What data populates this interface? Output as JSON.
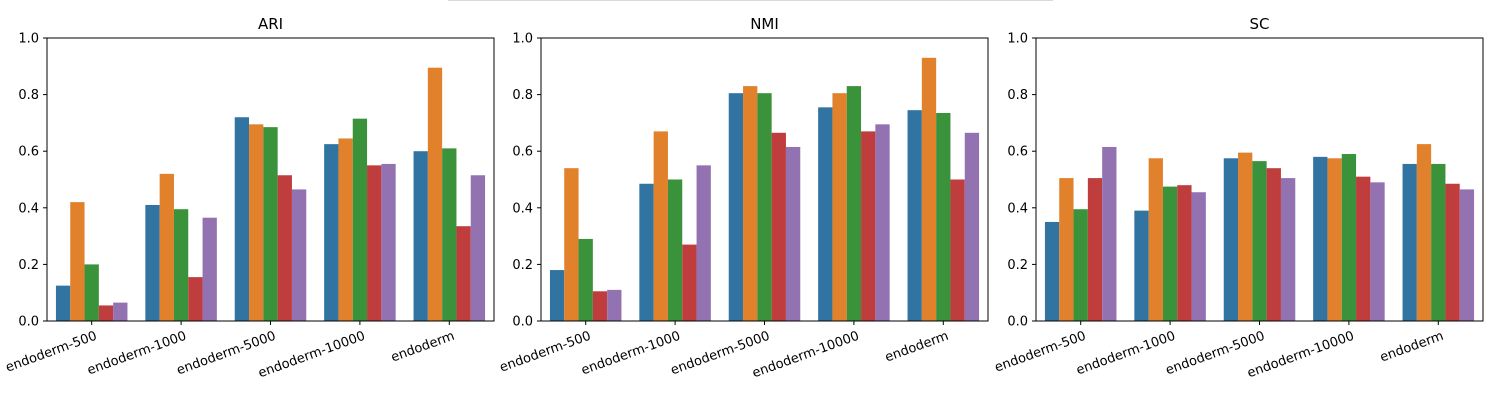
{
  "chart_data": [
    {
      "type": "bar",
      "title": "ARI",
      "categories": [
        "endoderm-500",
        "endoderm-1000",
        "endoderm-5000",
        "endoderm-10000",
        "endoderm"
      ],
      "ylim": [
        0,
        1.0
      ],
      "yticks": [
        "0.0",
        "0.2",
        "0.4",
        "0.6",
        "0.8",
        "1.0"
      ],
      "series": [
        {
          "color": "#3274a1",
          "values": [
            0.125,
            0.41,
            0.72,
            0.625,
            0.6
          ]
        },
        {
          "color": "#e1812c",
          "values": [
            0.42,
            0.52,
            0.695,
            0.645,
            0.895
          ]
        },
        {
          "color": "#3a923a",
          "values": [
            0.2,
            0.395,
            0.685,
            0.715,
            0.61
          ]
        },
        {
          "color": "#c03d3e",
          "values": [
            0.055,
            0.155,
            0.515,
            0.55,
            0.335
          ]
        },
        {
          "color": "#9372b2",
          "values": [
            0.065,
            0.365,
            0.465,
            0.555,
            0.515
          ]
        }
      ]
    },
    {
      "type": "bar",
      "title": "NMI",
      "categories": [
        "endoderm-500",
        "endoderm-1000",
        "endoderm-5000",
        "endoderm-10000",
        "endoderm"
      ],
      "ylim": [
        0,
        1.0
      ],
      "yticks": [
        "0.0",
        "0.2",
        "0.4",
        "0.6",
        "0.8",
        "1.0"
      ],
      "series": [
        {
          "color": "#3274a1",
          "values": [
            0.18,
            0.485,
            0.805,
            0.755,
            0.745
          ]
        },
        {
          "color": "#e1812c",
          "values": [
            0.54,
            0.67,
            0.83,
            0.805,
            0.93
          ]
        },
        {
          "color": "#3a923a",
          "values": [
            0.29,
            0.5,
            0.805,
            0.83,
            0.735
          ]
        },
        {
          "color": "#c03d3e",
          "values": [
            0.105,
            0.27,
            0.665,
            0.67,
            0.5
          ]
        },
        {
          "color": "#9372b2",
          "values": [
            0.11,
            0.55,
            0.615,
            0.695,
            0.665
          ]
        }
      ]
    },
    {
      "type": "bar",
      "title": "SC",
      "categories": [
        "endoderm-500",
        "endoderm-1000",
        "endoderm-5000",
        "endoderm-10000",
        "endoderm"
      ],
      "ylim": [
        0,
        1.0
      ],
      "yticks": [
        "0.0",
        "0.2",
        "0.4",
        "0.6",
        "0.8",
        "1.0"
      ],
      "series": [
        {
          "color": "#3274a1",
          "values": [
            0.35,
            0.39,
            0.575,
            0.58,
            0.555
          ]
        },
        {
          "color": "#e1812c",
          "values": [
            0.505,
            0.575,
            0.595,
            0.575,
            0.625
          ]
        },
        {
          "color": "#3a923a",
          "values": [
            0.395,
            0.475,
            0.565,
            0.59,
            0.555
          ]
        },
        {
          "color": "#c03d3e",
          "values": [
            0.505,
            0.48,
            0.54,
            0.51,
            0.485
          ]
        },
        {
          "color": "#9372b2",
          "values": [
            0.615,
            0.455,
            0.505,
            0.49,
            0.465
          ]
        }
      ]
    }
  ]
}
